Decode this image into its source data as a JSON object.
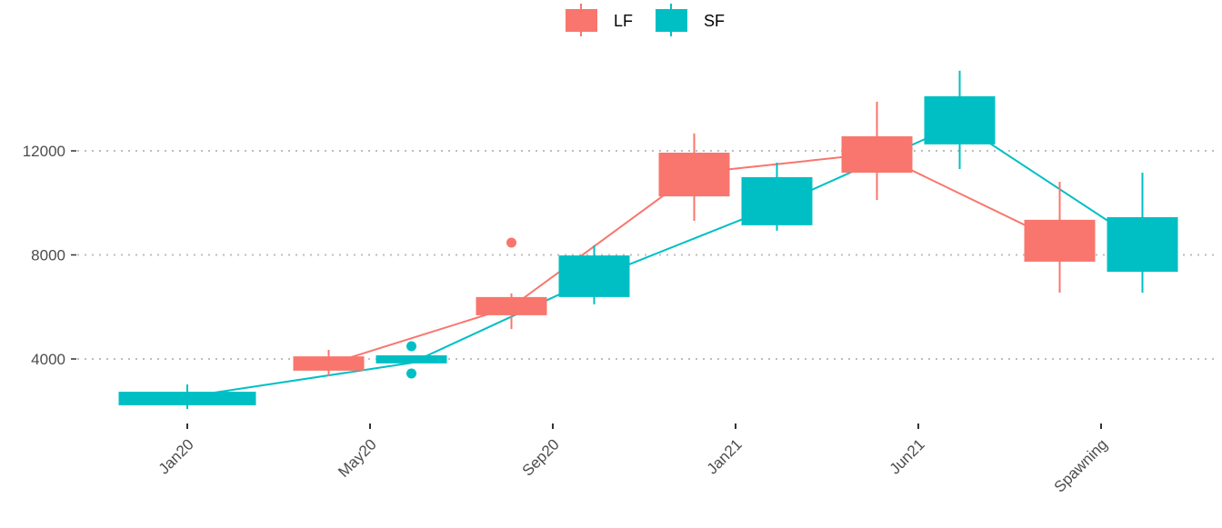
{
  "chart_data": {
    "type": "boxplot",
    "title": "",
    "xlabel": "",
    "ylabel": "",
    "categories": [
      "Jan20",
      "May20",
      "Sep20",
      "Jan21",
      "Jun21",
      "Spawning"
    ],
    "y_ticks": [
      4000,
      8000,
      12000
    ],
    "ylim": [
      1200,
      15500
    ],
    "grid": "horizontal dotted major",
    "legend": {
      "placement": "top",
      "entries": [
        "LF",
        "SF"
      ]
    },
    "colors": {
      "LF": "#F8766D",
      "SF": "#00BFC4"
    },
    "series": [
      {
        "name": "LF",
        "boxes": [
          null,
          {
            "min": 3340,
            "q1": 3550,
            "q3": 4100,
            "max": 4350,
            "outliers": []
          },
          {
            "min": 5150,
            "q1": 5680,
            "q3": 6380,
            "max": 6520,
            "outliers": [
              8470
            ]
          },
          {
            "min": 9310,
            "q1": 10250,
            "q3": 11930,
            "max": 12670,
            "outliers": []
          },
          {
            "min": 10110,
            "q1": 11160,
            "q3": 12560,
            "max": 13890,
            "outliers": []
          },
          {
            "min": 6550,
            "q1": 7740,
            "q3": 9350,
            "max": 10810,
            "outliers": []
          }
        ],
        "line": [
          null,
          3800,
          6000,
          11150,
          11900,
          8500
        ]
      },
      {
        "name": "SF",
        "boxes": [
          {
            "min": 2080,
            "q1": 2220,
            "q3": 2740,
            "max": 3020,
            "outliers": []
          },
          {
            "min": 3830,
            "q1": 3830,
            "q3": 4140,
            "max": 4140,
            "outliers": [
              4490,
              3440
            ]
          },
          {
            "min": 6100,
            "q1": 6380,
            "q3": 7980,
            "max": 8370,
            "outliers": []
          },
          {
            "min": 8930,
            "q1": 9140,
            "q3": 10990,
            "max": 11550,
            "outliers": []
          },
          {
            "min": 11300,
            "q1": 12250,
            "q3": 14100,
            "max": 15080,
            "outliers": []
          },
          {
            "min": 6550,
            "q1": 7350,
            "q3": 9450,
            "max": 11160,
            "outliers": []
          }
        ],
        "line": [
          2550,
          3850,
          7100,
          9900,
          13050,
          8440
        ]
      }
    ]
  }
}
